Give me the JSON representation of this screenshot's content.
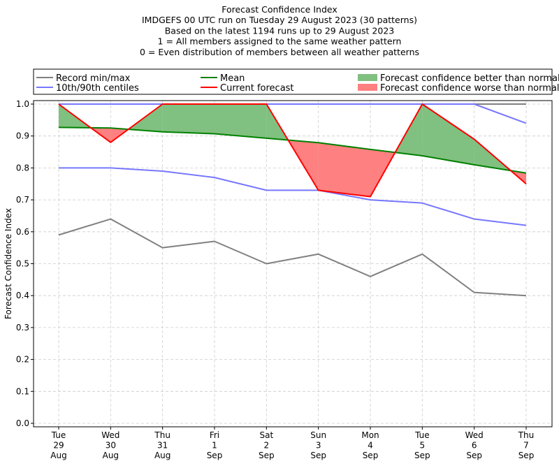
{
  "chart_data": {
    "type": "line",
    "title_lines": [
      "Forecast Confidence Index",
      "IMDGEFS 00 UTC run on Tuesday 29 August 2023 (30 patterns)",
      "Based on the latest 1194 runs up to 29 August 2023",
      "1 = All members assigned to the same weather pattern",
      "0 = Even distribution of members between all weather patterns"
    ],
    "ylabel": "Forecast Confidence Index",
    "xlabel": "",
    "ylim": [
      0,
      1
    ],
    "yticks": [
      "0.0",
      "0.1",
      "0.2",
      "0.3",
      "0.4",
      "0.5",
      "0.6",
      "0.7",
      "0.8",
      "0.9",
      "1.0"
    ],
    "grid": true,
    "legend_placement": "top, above plot",
    "categories": [
      [
        "Tue",
        "29",
        "Aug"
      ],
      [
        "Wed",
        "30",
        "Aug"
      ],
      [
        "Thu",
        "31",
        "Aug"
      ],
      [
        "Fri",
        "1",
        "Sep"
      ],
      [
        "Sat",
        "2",
        "Sep"
      ],
      [
        "Sun",
        "3",
        "Sep"
      ],
      [
        "Mon",
        "4",
        "Sep"
      ],
      [
        "Tue",
        "5",
        "Sep"
      ],
      [
        "Wed",
        "6",
        "Sep"
      ],
      [
        "Thu",
        "7",
        "Sep"
      ]
    ],
    "series": [
      {
        "name": "Record min/max",
        "color": "#808080",
        "part": "max",
        "values": [
          1,
          1,
          1,
          1,
          1,
          1,
          1,
          1,
          1,
          1
        ]
      },
      {
        "name": "Record min/max",
        "color": "#808080",
        "part": "min",
        "values": [
          0.59,
          0.64,
          0.55,
          0.57,
          0.5,
          0.53,
          0.46,
          0.53,
          0.41,
          0.4
        ]
      },
      {
        "name": "10th/90th centiles",
        "color": "#7777ff",
        "part": "90th",
        "values": [
          1,
          1,
          1,
          1,
          1,
          1,
          1,
          1,
          1,
          0.94
        ]
      },
      {
        "name": "10th/90th centiles",
        "color": "#7777ff",
        "part": "10th",
        "values": [
          0.8,
          0.8,
          0.79,
          0.77,
          0.73,
          0.73,
          0.7,
          0.69,
          0.64,
          0.62
        ]
      },
      {
        "name": "Mean",
        "color": "#008000",
        "values": [
          0.927,
          0.925,
          0.913,
          0.907,
          0.893,
          0.879,
          0.858,
          0.838,
          0.81,
          0.784
        ]
      },
      {
        "name": "Current forecast",
        "color": "#ff0000",
        "values": [
          1.0,
          0.88,
          1.0,
          1.0,
          1.0,
          0.73,
          0.71,
          1.0,
          0.89,
          0.75
        ]
      }
    ],
    "fills": {
      "better": {
        "name": "Forecast confidence better than normal",
        "color": "#80c080"
      },
      "worse": {
        "name": "Forecast confidence worse than normal",
        "color": "#ff8080"
      }
    },
    "legend": [
      {
        "label": "Record min/max",
        "color": "#808080",
        "kind": "line"
      },
      {
        "label": "Mean",
        "color": "#008000",
        "kind": "line"
      },
      {
        "label": "Forecast confidence better than normal",
        "color": "#80c080",
        "kind": "patch"
      },
      {
        "label": "10th/90th centiles",
        "color": "#7777ff",
        "kind": "line"
      },
      {
        "label": "Current forecast",
        "color": "#ff0000",
        "kind": "line"
      },
      {
        "label": "Forecast confidence worse than normal",
        "color": "#ff8080",
        "kind": "patch"
      }
    ]
  }
}
